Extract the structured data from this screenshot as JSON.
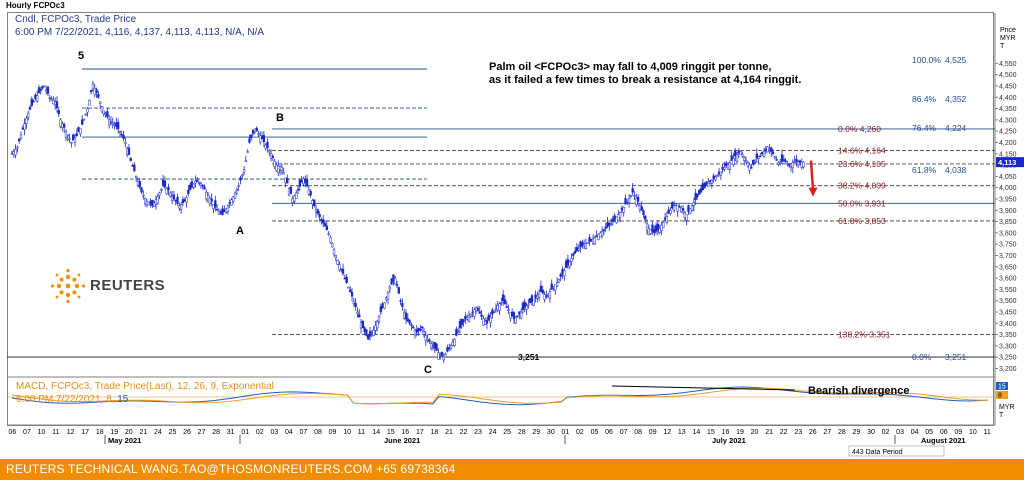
{
  "window": {
    "title": "Hourly FCPOc3"
  },
  "info": {
    "line1": "Cndl, FCPOc3, Trade Price",
    "line2": "6:00 PM 7/22/2021, 4,116, 4,137, 4,113, 4,113, N/A, N/A"
  },
  "annotation": {
    "line1": "Palm oil <FCPOc3> may fall to 4,009 ringgit per tonne,",
    "line2": "as it failed a few times to break a resistance at 4,164 ringgit."
  },
  "wave_labels": {
    "five": "5",
    "b": "B",
    "a": "A",
    "c": "C"
  },
  "macd": {
    "line1": "MACD, FCPOc3, Trade Price(Last), 12, 26, 9, Exponential",
    "line2_text": "6:00 PM 7/22/2021, 8, ",
    "line2_value": "15",
    "divergence_label": "Bearish divergence",
    "axis_value_1": "15",
    "axis_value_2": "8",
    "axis_unit_1": "MYR",
    "axis_unit_2": "T",
    "colors": {
      "macd": "#1f5fbf",
      "signal": "#f0a020"
    }
  },
  "footer": {
    "text": "REUTERS TECHNICAL  WANG.TAO@THOSMONREUTERS.COM  +65 69738364"
  },
  "logo": {
    "text": "REUTERS"
  },
  "colors": {
    "candle": "#1a28c8",
    "level_blue": "#1f4e8c",
    "level_red": "#8b1a1a",
    "arrow": "#e02020",
    "footer": "#f28c00"
  },
  "chart_data": {
    "type": "candlestick",
    "title": "Hourly FCPOc3",
    "ylabel_lines": [
      "Price",
      "MYR",
      "T"
    ],
    "ylim": [
      3200,
      4600
    ],
    "yticks": [
      4550,
      4500,
      4450,
      4400,
      4350,
      4300,
      4250,
      4200,
      4150,
      4100,
      4050,
      4000,
      3950,
      3900,
      3850,
      3800,
      3750,
      3700,
      3650,
      3600,
      3550,
      3500,
      3450,
      3400,
      3350,
      3300,
      3250,
      3200
    ],
    "current_price": 4113,
    "x_day_ticks": [
      "06",
      "07",
      "10",
      "11",
      "12",
      "17",
      "18",
      "19",
      "20",
      "21",
      "24",
      "25",
      "26",
      "27",
      "28",
      "31",
      "01",
      "02",
      "03",
      "04",
      "07",
      "08",
      "09",
      "10",
      "11",
      "14",
      "15",
      "16",
      "17",
      "18",
      "21",
      "22",
      "23",
      "24",
      "25",
      "28",
      "29",
      "30",
      "01",
      "02",
      "05",
      "06",
      "07",
      "08",
      "09",
      "12",
      "13",
      "14",
      "15",
      "16",
      "19",
      "20",
      "21",
      "22",
      "23",
      "26",
      "27",
      "28",
      "29",
      "30",
      "02",
      "03",
      "04",
      "05",
      "06",
      "09",
      "10",
      "11"
    ],
    "x_month_labels": [
      "May 2021",
      "June 2021",
      "July 2021",
      "August 2021"
    ],
    "data_period_label": "443 Data Period",
    "swing_points": [
      {
        "label": "5",
        "price": 4525
      },
      {
        "label": "B",
        "price": 4260
      },
      {
        "label": "A",
        "price": 3880
      },
      {
        "label": "C",
        "price": 3251
      }
    ],
    "fib_levels_retracement_1": [
      {
        "label": "100.0%",
        "value": 4525
      },
      {
        "label": "86.4%",
        "value": 4352
      },
      {
        "label": "76.4%",
        "value": 4224
      },
      {
        "label": "61.8%",
        "value": 4038
      },
      {
        "label": "0.0%",
        "value": 3251
      }
    ],
    "fib_levels_projection_2": [
      {
        "label": "0.0%",
        "value": 4260
      },
      {
        "label": "14.6%",
        "value": 4164
      },
      {
        "label": "23.6%",
        "value": 4105
      },
      {
        "label": "38.2%",
        "value": 4009
      },
      {
        "label": "50.0%",
        "value": 3931
      },
      {
        "label": "61.8%",
        "value": 3853
      },
      {
        "label": "138.2%",
        "value": 3351
      }
    ],
    "c_low_label": "3,251",
    "candles_path": [
      4150,
      4180,
      4260,
      4330,
      4380,
      4420,
      4450,
      4400,
      4380,
      4300,
      4250,
      4200,
      4230,
      4280,
      4350,
      4460,
      4400,
      4340,
      4300,
      4280,
      4250,
      4200,
      4120,
      4050,
      3980,
      3940,
      3920,
      3960,
      4010,
      3990,
      3950,
      3920,
      3940,
      3990,
      4030,
      4020,
      3980,
      3940,
      3900,
      3880,
      3920,
      3960,
      4010,
      4080,
      4200,
      4260,
      4230,
      4190,
      4150,
      4100,
      4090,
      4020,
      3950,
      3990,
      4040,
      3990,
      3920,
      3870,
      3830,
      3780,
      3700,
      3640,
      3580,
      3520,
      3450,
      3380,
      3330,
      3370,
      3430,
      3490,
      3560,
      3600,
      3500,
      3420,
      3390,
      3360,
      3380,
      3330,
      3300,
      3270,
      3251,
      3290,
      3330,
      3380,
      3420,
      3440,
      3470,
      3430,
      3400,
      3440,
      3480,
      3500,
      3460,
      3420,
      3440,
      3470,
      3490,
      3510,
      3540,
      3520,
      3550,
      3580,
      3620,
      3660,
      3700,
      3730,
      3750,
      3760,
      3780,
      3800,
      3820,
      3840,
      3870,
      3900,
      3940,
      3980,
      3940,
      3880,
      3820,
      3800,
      3820,
      3860,
      3900,
      3930,
      3910,
      3880,
      3920,
      3960,
      3990,
      4020,
      4040,
      4060,
      4090,
      4110,
      4140,
      4160,
      4120,
      4090,
      4130,
      4150,
      4180,
      4150,
      4110,
      4120,
      4100,
      4116,
      4113
    ]
  }
}
